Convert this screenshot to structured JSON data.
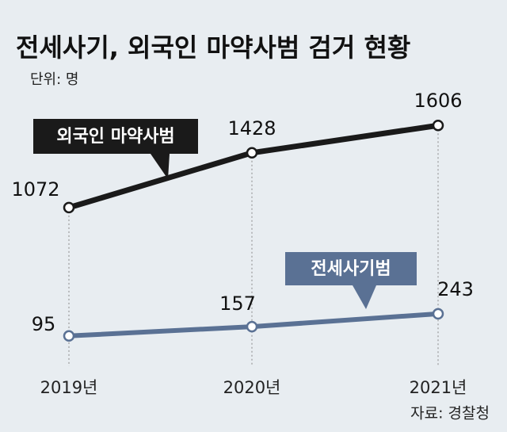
{
  "chart_data": {
    "type": "line",
    "title": "전세사기, 외국인 마약사범 검거 현황",
    "subtitle": "단위: 명",
    "source": "자료: 경찰청",
    "categories": [
      "2019년",
      "2020년",
      "2021년"
    ],
    "series": [
      {
        "name": "외국인 마약사범",
        "color": "#1a1a1a",
        "values": [
          1072,
          1428,
          1606
        ]
      },
      {
        "name": "전세사기범",
        "color": "#5a7194",
        "values": [
          95,
          157,
          243
        ],
        "axis": "y2"
      }
    ],
    "ylim": [
      0,
      1700
    ],
    "y2lim": [
      -150,
      1600
    ]
  }
}
